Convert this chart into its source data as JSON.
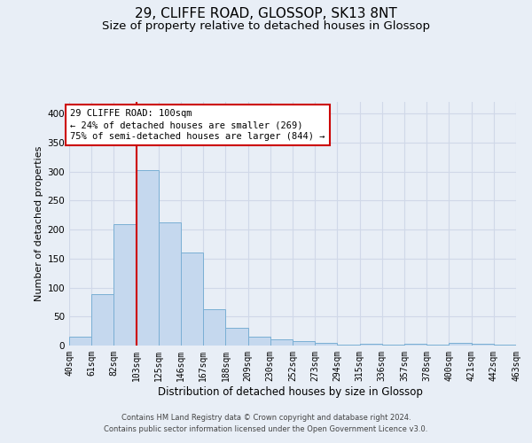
{
  "title1": "29, CLIFFE ROAD, GLOSSOP, SK13 8NT",
  "title2": "Size of property relative to detached houses in Glossop",
  "xlabel": "Distribution of detached houses by size in Glossop",
  "ylabel": "Number of detached properties",
  "footnote1": "Contains HM Land Registry data © Crown copyright and database right 2024.",
  "footnote2": "Contains public sector information licensed under the Open Government Licence v3.0.",
  "bar_labels": [
    "40sqm",
    "61sqm",
    "82sqm",
    "103sqm",
    "125sqm",
    "146sqm",
    "167sqm",
    "188sqm",
    "209sqm",
    "230sqm",
    "252sqm",
    "273sqm",
    "294sqm",
    "315sqm",
    "336sqm",
    "357sqm",
    "378sqm",
    "400sqm",
    "421sqm",
    "442sqm",
    "463sqm"
  ],
  "bar_values": [
    15,
    88,
    210,
    303,
    213,
    160,
    63,
    30,
    16,
    10,
    7,
    4,
    2,
    3,
    2,
    3,
    2,
    5,
    3,
    2
  ],
  "bar_color": "#c5d8ee",
  "bar_edge_color": "#7aafd4",
  "vline_x": 3,
  "vline_color": "#cc0000",
  "annotation_text": "29 CLIFFE ROAD: 100sqm\n← 24% of detached houses are smaller (269)\n75% of semi-detached houses are larger (844) →",
  "ylim": [
    0,
    420
  ],
  "yticks": [
    0,
    50,
    100,
    150,
    200,
    250,
    300,
    350,
    400
  ],
  "bg_color": "#e8eef6",
  "grid_color": "#d0d8e8",
  "title1_fontsize": 11,
  "title2_fontsize": 9.5,
  "xlabel_fontsize": 8.5,
  "ylabel_fontsize": 8,
  "tick_fontsize": 7,
  "annot_fontsize": 7.5,
  "footnote_fontsize": 6
}
